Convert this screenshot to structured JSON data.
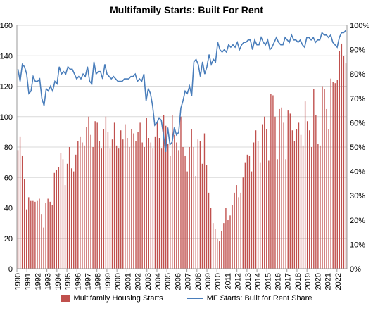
{
  "chart_data": {
    "type": "bar+line",
    "title": "Multifamily Starts: Built For Rent",
    "left_axis": {
      "ylim": [
        0,
        160
      ],
      "ticks": [
        "0",
        "20",
        "40",
        "60",
        "80",
        "100",
        "120",
        "140",
        "160"
      ]
    },
    "right_axis": {
      "ylim": [
        0,
        100
      ],
      "ticks": [
        "0%",
        "10%",
        "20%",
        "30%",
        "40%",
        "50%",
        "60%",
        "70%",
        "80%",
        "90%",
        "100%"
      ]
    },
    "x_tick_labels": [
      "1990",
      "1991",
      "1992",
      "1993",
      "1994",
      "1995",
      "1996",
      "1997",
      "1998",
      "1999",
      "2000",
      "2001",
      "2002",
      "2003",
      "2004",
      "2005",
      "2006",
      "2007",
      "2008",
      "2009",
      "2010",
      "2011",
      "2012",
      "2013",
      "2014",
      "2015",
      "2016",
      "2017",
      "2018",
      "2019",
      "2020",
      "2021",
      "2022"
    ],
    "x_start": 1990,
    "periods_per_year": 4,
    "grid": "horizontal",
    "legend_position": "bottom",
    "series": [
      {
        "name": "Multifamily Housing Starts",
        "axis": "left",
        "color": "#c0504d",
        "values": [
          78,
          87,
          74,
          59,
          39,
          47,
          45,
          45,
          44,
          45,
          46,
          36,
          27,
          43,
          46,
          44,
          42,
          63,
          65,
          67,
          76,
          72,
          55,
          69,
          80,
          66,
          64,
          75,
          84,
          87,
          83,
          81,
          93,
          100,
          88,
          80,
          97,
          96,
          84,
          79,
          92,
          100,
          90,
          79,
          85,
          96,
          81,
          79,
          91,
          85,
          95,
          86,
          80,
          92,
          89,
          84,
          90,
          96,
          83,
          80,
          99,
          86,
          83,
          79,
          87,
          96,
          86,
          79,
          101,
          94,
          82,
          74,
          101,
          88,
          83,
          78,
          100,
          80,
          74,
          64,
          80,
          92,
          80,
          61,
          85,
          84,
          69,
          89,
          68,
          50,
          40,
          30,
          26,
          20,
          18,
          25,
          30,
          40,
          32,
          35,
          42,
          50,
          55,
          47,
          50,
          60,
          70,
          75,
          74,
          64,
          83,
          91,
          84,
          70,
          95,
          100,
          92,
          71,
          115,
          114,
          100,
          72,
          105,
          106,
          96,
          72,
          104,
          102,
          91,
          84,
          92,
          96,
          88,
          81,
          110,
          97,
          91,
          80,
          118,
          101,
          82,
          81,
          120,
          118,
          105,
          92,
          125,
          123,
          122,
          124,
          143,
          148,
          140,
          135
        ]
      },
      {
        "name": "MF Starts: Built for Rent Share",
        "axis": "right",
        "color": "#4a7ebb",
        "values": [
          82,
          77,
          84,
          83,
          80,
          72,
          73,
          79,
          77,
          77,
          78,
          70,
          67,
          74,
          73,
          75,
          73,
          77,
          76,
          83,
          80,
          81,
          80,
          83,
          82,
          82,
          80,
          78,
          79,
          78,
          80,
          79,
          83,
          77,
          76,
          85,
          80,
          81,
          81,
          78,
          84,
          80,
          79,
          78,
          79,
          78,
          77,
          77,
          77,
          78,
          78,
          78,
          79,
          79,
          80,
          77,
          78,
          77,
          80,
          69,
          74,
          72,
          67,
          59,
          60,
          62,
          61,
          55,
          48,
          58,
          51,
          52,
          58,
          55,
          56,
          66,
          69,
          73,
          72,
          75,
          71,
          85,
          86,
          84,
          79,
          85,
          80,
          83,
          88,
          84,
          86,
          85,
          93,
          90,
          89,
          90,
          89,
          92,
          91,
          92,
          91,
          93,
          90,
          92,
          93,
          93,
          94,
          94,
          90,
          94,
          92,
          92,
          95,
          93,
          92,
          94,
          90,
          91,
          93,
          95,
          93,
          92,
          92,
          95,
          94,
          93,
          96,
          94,
          94,
          93,
          94,
          92,
          91,
          95,
          95,
          94,
          95,
          93,
          94,
          94,
          97,
          96,
          96,
          95,
          96,
          93,
          92,
          91,
          95,
          97,
          97,
          98
        ]
      }
    ]
  }
}
